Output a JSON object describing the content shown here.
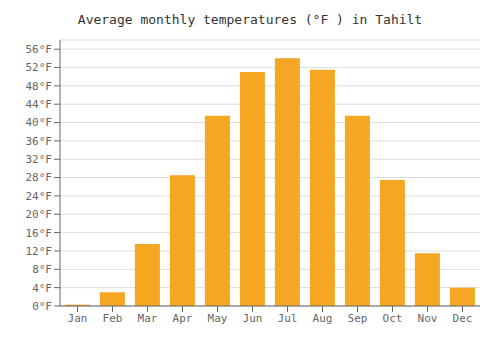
{
  "chart_data": {
    "type": "bar",
    "title": "Average monthly temperatures (°F ) in Tahilt",
    "categories": [
      "Jan",
      "Feb",
      "Mar",
      "Apr",
      "May",
      "Jun",
      "Jul",
      "Aug",
      "Sep",
      "Oct",
      "Nov",
      "Dec"
    ],
    "values": [
      0.3,
      3.0,
      13.5,
      28.5,
      41.5,
      51.0,
      54.0,
      51.5,
      41.5,
      27.5,
      11.5,
      4.0
    ],
    "color": "#F5A623",
    "ylim": [
      0,
      58
    ],
    "yticks": [
      {
        "value": 0,
        "label": "0°F"
      },
      {
        "value": 4,
        "label": "4°F"
      },
      {
        "value": 8,
        "label": "8°F"
      },
      {
        "value": 12,
        "label": "12°F"
      },
      {
        "value": 16,
        "label": "16°F"
      },
      {
        "value": 20,
        "label": "20°F"
      },
      {
        "value": 24,
        "label": "24°F"
      },
      {
        "value": 28,
        "label": "28°F"
      },
      {
        "value": 32,
        "label": "32°F"
      },
      {
        "value": 36,
        "label": "36°F"
      },
      {
        "value": 40,
        "label": "40°F"
      },
      {
        "value": 44,
        "label": "44°F"
      },
      {
        "value": 48,
        "label": "48°F"
      },
      {
        "value": 52,
        "label": "52°F"
      },
      {
        "value": 56,
        "label": "56°F"
      }
    ],
    "grid": true
  }
}
